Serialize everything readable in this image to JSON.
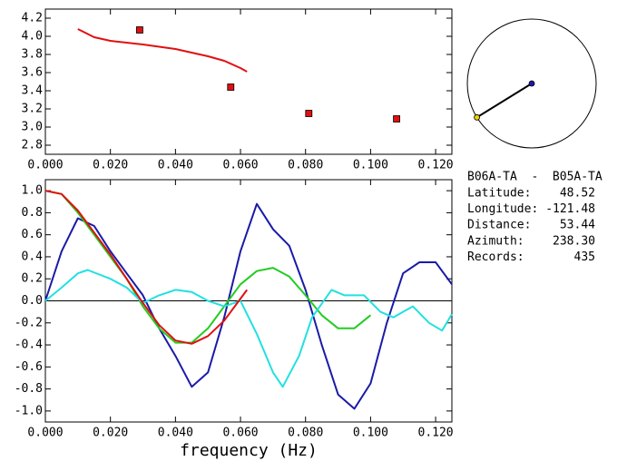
{
  "chart_data": [
    {
      "type": "line",
      "xlim": [
        0,
        0.125
      ],
      "ylim": [
        2.7,
        4.3
      ],
      "xticks": [
        {
          "value": 0,
          "label": "0.000"
        },
        {
          "value": 0.02,
          "label": "0.020"
        },
        {
          "value": 0.04,
          "label": "0.040"
        },
        {
          "value": 0.06,
          "label": "0.060"
        },
        {
          "value": 0.08,
          "label": "0.080"
        },
        {
          "value": 0.1,
          "label": "0.100"
        },
        {
          "value": 0.12,
          "label": "0.120"
        }
      ],
      "yticks": [
        2.8,
        {
          "value": 3,
          "label": "3.0"
        },
        3.2,
        3.4,
        3.6,
        3.8,
        {
          "value": 4,
          "label": "4.0"
        },
        4.2
      ],
      "series": [
        {
          "color": "#e01010",
          "mode": "line",
          "x": [
            0.01,
            0.015,
            0.02,
            0.03,
            0.04,
            0.05,
            0.055,
            0.06,
            0.062
          ],
          "values": [
            4.08,
            3.99,
            3.95,
            3.91,
            3.86,
            3.78,
            3.73,
            3.65,
            3.61
          ]
        },
        {
          "color": "#e01010",
          "mode": "markers",
          "x": [
            0.029,
            0.057,
            0.081,
            0.108
          ],
          "values": [
            4.07,
            3.44,
            3.15,
            3.09
          ]
        }
      ]
    },
    {
      "type": "line",
      "xlabel": "frequency (Hz)",
      "xlim": [
        0,
        0.125
      ],
      "ylim": [
        -1.1,
        1.1
      ],
      "zero_line": true,
      "xticks": [
        {
          "value": 0,
          "label": "0.000"
        },
        {
          "value": 0.02,
          "label": "0.020"
        },
        {
          "value": 0.04,
          "label": "0.040"
        },
        {
          "value": 0.06,
          "label": "0.060"
        },
        {
          "value": 0.08,
          "label": "0.080"
        },
        {
          "value": 0.1,
          "label": "0.100"
        },
        {
          "value": 0.12,
          "label": "0.120"
        }
      ],
      "yticks": [
        {
          "value": 1,
          "label": "1.0"
        },
        0.8,
        0.6,
        0.4,
        0.2,
        {
          "value": 0,
          "label": "0.0"
        },
        -0.2,
        -0.4,
        -0.6,
        -0.8,
        {
          "value": -1,
          "label": "-1.0"
        }
      ],
      "series": [
        {
          "color": "#1a1aa8",
          "mode": "line",
          "x": [
            0,
            0.005,
            0.01,
            0.015,
            0.02,
            0.025,
            0.03,
            0.035,
            0.04,
            0.045,
            0.05,
            0.055,
            0.06,
            0.065,
            0.07,
            0.075,
            0.08,
            0.085,
            0.09,
            0.095,
            0.1,
            0.105,
            0.11,
            0.115,
            0.12,
            0.125
          ],
          "values": [
            0,
            0.45,
            0.75,
            0.68,
            0.45,
            0.25,
            0.05,
            -0.25,
            -0.5,
            -0.78,
            -0.65,
            -0.15,
            0.45,
            0.88,
            0.65,
            0.5,
            0.1,
            -0.4,
            -0.85,
            -0.98,
            -0.75,
            -0.2,
            0.25,
            0.35,
            0.35,
            0.15
          ]
        },
        {
          "color": "#22cc22",
          "mode": "line",
          "x": [
            0,
            0.005,
            0.01,
            0.015,
            0.02,
            0.025,
            0.03,
            0.035,
            0.04,
            0.045,
            0.05,
            0.055,
            0.06,
            0.065,
            0.07,
            0.075,
            0.08,
            0.085,
            0.09,
            0.095,
            0.1
          ],
          "values": [
            1.0,
            0.97,
            0.8,
            0.6,
            0.4,
            0.2,
            -0.05,
            -0.25,
            -0.38,
            -0.38,
            -0.25,
            -0.05,
            0.15,
            0.27,
            0.3,
            0.22,
            0.05,
            -0.13,
            -0.25,
            -0.25,
            -0.13
          ]
        },
        {
          "color": "#22e0e0",
          "mode": "line",
          "x": [
            0,
            0.005,
            0.01,
            0.013,
            0.02,
            0.025,
            0.03,
            0.035,
            0.04,
            0.045,
            0.05,
            0.055,
            0.06,
            0.065,
            0.07,
            0.073,
            0.078,
            0.082,
            0.088,
            0.092,
            0.095,
            0.098,
            0.103,
            0.107,
            0.11,
            0.113,
            0.118,
            0.122,
            0.125
          ],
          "values": [
            0,
            0.12,
            0.25,
            0.28,
            0.2,
            0.12,
            -0.02,
            0.05,
            0.1,
            0.08,
            0.0,
            -0.05,
            0.0,
            -0.3,
            -0.65,
            -0.78,
            -0.5,
            -0.15,
            0.1,
            0.05,
            0.05,
            0.05,
            -0.1,
            -0.15,
            -0.1,
            -0.05,
            -0.2,
            -0.27,
            -0.12
          ]
        },
        {
          "color": "#e01010",
          "mode": "line",
          "x": [
            0,
            0.005,
            0.01,
            0.015,
            0.02,
            0.025,
            0.03,
            0.035,
            0.04,
            0.045,
            0.05,
            0.055,
            0.06,
            0.062
          ],
          "values": [
            1.0,
            0.97,
            0.82,
            0.62,
            0.42,
            0.2,
            -0.02,
            -0.22,
            -0.36,
            -0.39,
            -0.32,
            -0.18,
            0.02,
            0.1
          ]
        }
      ]
    }
  ],
  "info": {
    "pair": "B06A-TA  -  B05A-TA",
    "rows": [
      {
        "label": "Latitude:",
        "value": "48.52"
      },
      {
        "label": "Longitude:",
        "value": "-121.48"
      },
      {
        "label": "Distance:",
        "value": "53.44"
      },
      {
        "label": "Azimuth:",
        "value": "238.30"
      },
      {
        "label": "Records:",
        "value": "435"
      }
    ]
  }
}
